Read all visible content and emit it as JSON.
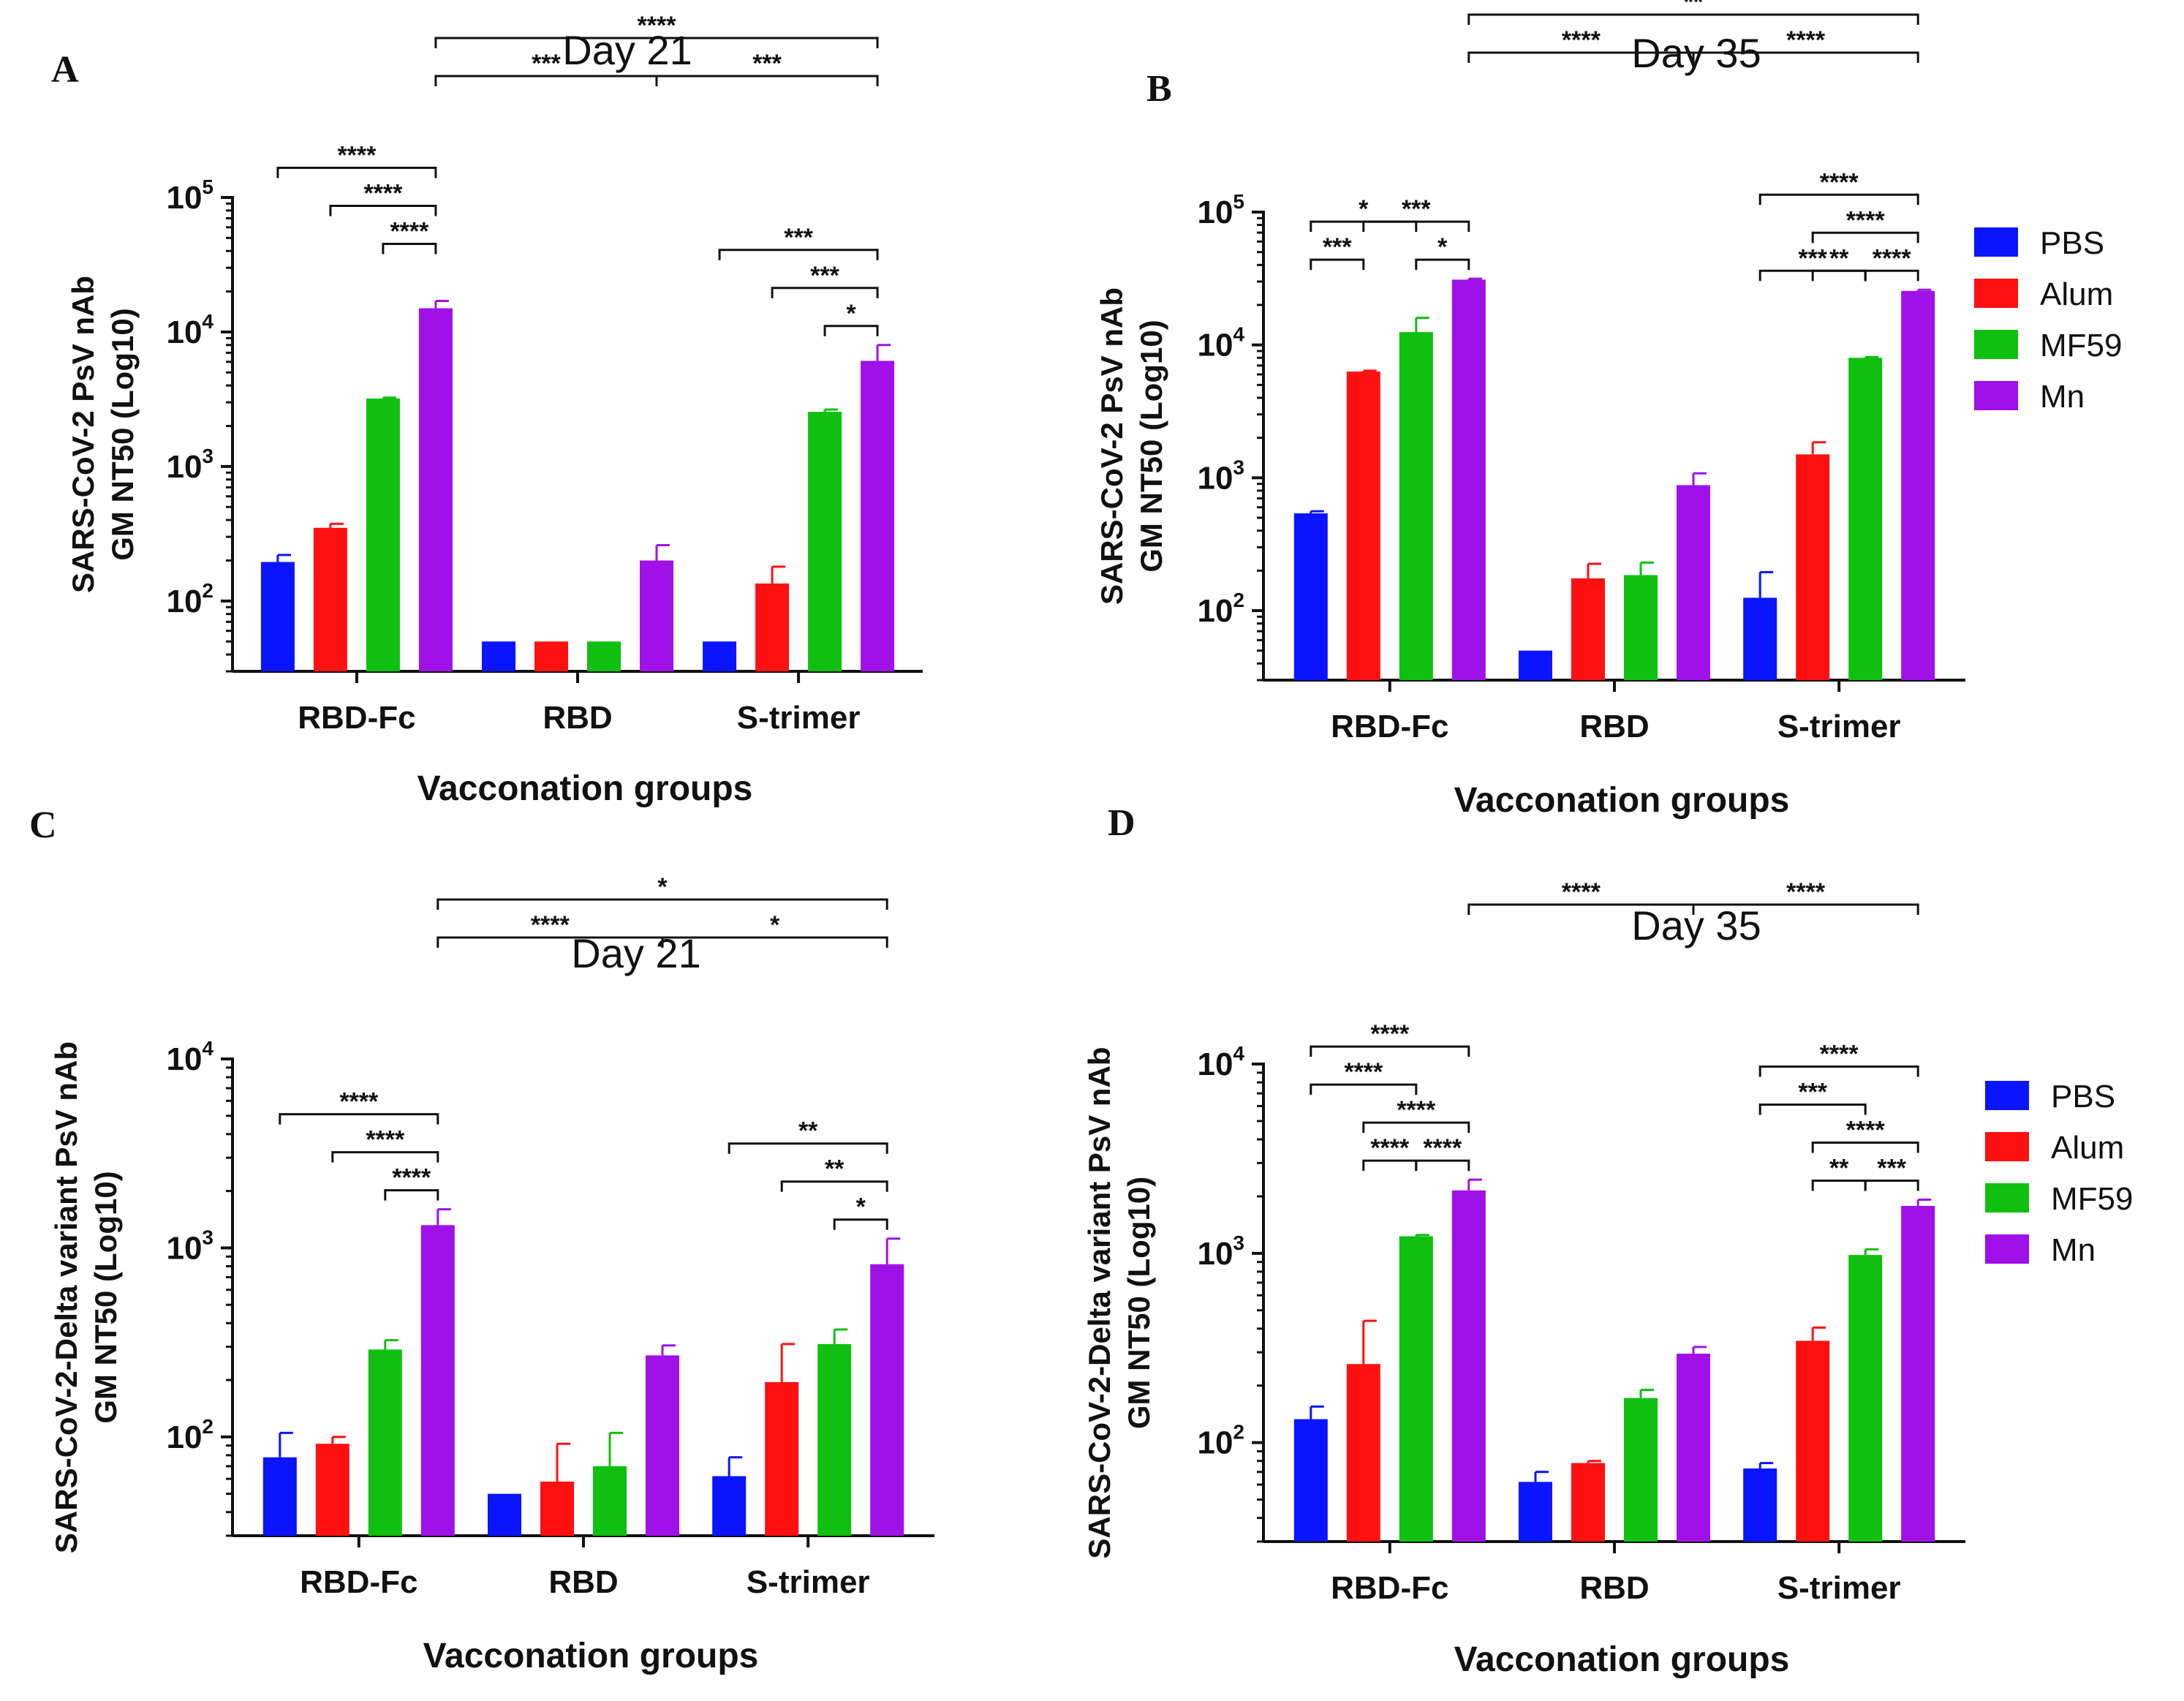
{
  "legend": {
    "items": [
      {
        "label": "PBS",
        "color": "#0a14ff"
      },
      {
        "label": "Alum",
        "color": "#ff1010"
      },
      {
        "label": "MF59",
        "color": "#10c010"
      },
      {
        "label": "Mn",
        "color": "#a010e8"
      }
    ]
  },
  "chart_data": [
    {
      "panel": "A",
      "type": "bar",
      "title": "Day 21",
      "ylabel_line1": "SARS-CoV-2 PsV nAb",
      "ylabel_line2": "GM NT50 (Log10)",
      "xlabel": "Vacconation groups",
      "yscale": "log",
      "ylim": [
        30,
        100000
      ],
      "yticks": [
        {
          "base": "10",
          "exp": "2"
        },
        {
          "base": "10",
          "exp": "3"
        },
        {
          "base": "10",
          "exp": "4"
        },
        {
          "base": "10",
          "exp": "5"
        }
      ],
      "categories": [
        "RBD-Fc",
        "RBD",
        "S-trimer"
      ],
      "series": [
        {
          "name": "PBS",
          "values": [
            195,
            50,
            50
          ],
          "errors": [
            220,
            null,
            null
          ]
        },
        {
          "name": "Alum",
          "values": [
            350,
            50,
            135
          ],
          "errors": [
            375,
            null,
            180
          ]
        },
        {
          "name": "MF59",
          "values": [
            3200,
            50,
            2550
          ],
          "errors": [
            3250,
            null,
            2650
          ]
        },
        {
          "name": "Mn",
          "values": [
            15000,
            200,
            6100
          ],
          "errors": [
            17000,
            260,
            8000
          ]
        }
      ],
      "brackets": [
        {
          "from": [
            0,
            0
          ],
          "to": [
            0,
            3
          ],
          "label": "****",
          "level": 3
        },
        {
          "from": [
            0,
            1
          ],
          "to": [
            0,
            3
          ],
          "label": "****",
          "level": 2
        },
        {
          "from": [
            0,
            2
          ],
          "to": [
            0,
            3
          ],
          "label": "****",
          "level": 1
        },
        {
          "from": [
            0,
            3
          ],
          "to": [
            1,
            3
          ],
          "label": "***",
          "level": 3
        },
        {
          "from": [
            1,
            3
          ],
          "to": [
            2,
            3
          ],
          "label": "***",
          "level": 3
        },
        {
          "from": [
            0,
            3
          ],
          "to": [
            2,
            3
          ],
          "label": "****",
          "level": 4
        },
        {
          "from": [
            2,
            0
          ],
          "to": [
            2,
            3
          ],
          "label": "***",
          "level": 2
        },
        {
          "from": [
            2,
            1
          ],
          "to": [
            2,
            3
          ],
          "label": "***",
          "level": 1
        },
        {
          "from": [
            2,
            2
          ],
          "to": [
            2,
            3
          ],
          "label": "*",
          "level": 0
        }
      ]
    },
    {
      "panel": "B",
      "type": "bar",
      "title": "Day 35",
      "ylabel_line1": "SARS-CoV-2 PsV nAb",
      "ylabel_line2": "GM NT50 (Log10)",
      "xlabel": "Vacconation groups",
      "yscale": "log",
      "ylim": [
        30,
        100000
      ],
      "yticks": [
        {
          "base": "10",
          "exp": "2"
        },
        {
          "base": "10",
          "exp": "3"
        },
        {
          "base": "10",
          "exp": "4"
        },
        {
          "base": "10",
          "exp": "5"
        }
      ],
      "categories": [
        "RBD-Fc",
        "RBD",
        "S-trimer"
      ],
      "series": [
        {
          "name": "PBS",
          "values": [
            540,
            50,
            125
          ],
          "errors": [
            560,
            null,
            195
          ]
        },
        {
          "name": "Alum",
          "values": [
            6300,
            175,
            1500
          ],
          "errors": [
            6400,
            225,
            1850
          ]
        },
        {
          "name": "MF59",
          "values": [
            12500,
            185,
            8000
          ],
          "errors": [
            16000,
            230,
            8100
          ]
        },
        {
          "name": "Mn",
          "values": [
            31000,
            880,
            25500
          ],
          "errors": [
            31500,
            1080,
            26000
          ]
        }
      ],
      "brackets": [
        {
          "from": [
            0,
            0
          ],
          "to": [
            0,
            1
          ],
          "label": "***",
          "level": 0
        },
        {
          "from": [
            0,
            0
          ],
          "to": [
            0,
            2
          ],
          "label": "*",
          "level": 1
        },
        {
          "from": [
            0,
            2
          ],
          "to": [
            0,
            3
          ],
          "label": "*",
          "level": 0
        },
        {
          "from": [
            0,
            1
          ],
          "to": [
            0,
            3
          ],
          "label": "***",
          "level": 1
        },
        {
          "from": [
            0,
            3
          ],
          "to": [
            1,
            3
          ],
          "label": "****",
          "level": 4
        },
        {
          "from": [
            1,
            3
          ],
          "to": [
            2,
            3
          ],
          "label": "****",
          "level": 4
        },
        {
          "from": [
            0,
            3
          ],
          "to": [
            2,
            3
          ],
          "label": "**",
          "level": 5
        },
        {
          "from": [
            2,
            0
          ],
          "to": [
            2,
            2
          ],
          "label": "***",
          "level": 0
        },
        {
          "from": [
            2,
            2
          ],
          "to": [
            2,
            3
          ],
          "label": "****",
          "level": 0
        },
        {
          "from": [
            2,
            1
          ],
          "to": [
            2,
            2
          ],
          "label": "**",
          "level": 0
        },
        {
          "from": [
            2,
            1
          ],
          "to": [
            2,
            3
          ],
          "label": "****",
          "level": 1
        },
        {
          "from": [
            2,
            0
          ],
          "to": [
            2,
            3
          ],
          "label": "****",
          "level": 2
        }
      ]
    },
    {
      "panel": "C",
      "type": "bar",
      "title": "Day 21",
      "ylabel_line1": "SARS-CoV-2-Delta variant PsV nAb",
      "ylabel_line2": "GM NT50 (Log10)",
      "xlabel": "Vacconation groups",
      "yscale": "log",
      "ylim": [
        30,
        10000
      ],
      "yticks": [
        {
          "base": "10",
          "exp": "2"
        },
        {
          "base": "10",
          "exp": "3"
        },
        {
          "base": "10",
          "exp": "4"
        }
      ],
      "categories": [
        "RBD-Fc",
        "RBD",
        "S-trimer"
      ],
      "series": [
        {
          "name": "PBS",
          "values": [
            78,
            50,
            62
          ],
          "errors": [
            105,
            null,
            78
          ]
        },
        {
          "name": "Alum",
          "values": [
            92,
            58,
            195
          ],
          "errors": [
            100,
            92,
            310
          ]
        },
        {
          "name": "MF59",
          "values": [
            290,
            70,
            310
          ],
          "errors": [
            325,
            105,
            370
          ]
        },
        {
          "name": "Mn",
          "values": [
            1320,
            270,
            820
          ],
          "errors": [
            1600,
            305,
            1120
          ]
        }
      ],
      "brackets": [
        {
          "from": [
            0,
            0
          ],
          "to": [
            0,
            3
          ],
          "label": "****",
          "level": 2
        },
        {
          "from": [
            0,
            1
          ],
          "to": [
            0,
            3
          ],
          "label": "****",
          "level": 1
        },
        {
          "from": [
            0,
            2
          ],
          "to": [
            0,
            3
          ],
          "label": "****",
          "level": 0
        },
        {
          "from": [
            0,
            3
          ],
          "to": [
            1,
            3
          ],
          "label": "****",
          "level": 3
        },
        {
          "from": [
            1,
            3
          ],
          "to": [
            2,
            3
          ],
          "label": "*",
          "level": 3
        },
        {
          "from": [
            0,
            3
          ],
          "to": [
            2,
            3
          ],
          "label": "*",
          "level": 4
        },
        {
          "from": [
            2,
            0
          ],
          "to": [
            2,
            3
          ],
          "label": "**",
          "level": 2
        },
        {
          "from": [
            2,
            1
          ],
          "to": [
            2,
            3
          ],
          "label": "**",
          "level": 1
        },
        {
          "from": [
            2,
            2
          ],
          "to": [
            2,
            3
          ],
          "label": "*",
          "level": 0
        }
      ]
    },
    {
      "panel": "D",
      "type": "bar",
      "title": "Day 35",
      "ylabel_line1": "SARS-CoV-2-Delta variant PsV nAb",
      "ylabel_line2": "GM NT50 (Log10)",
      "xlabel": "Vacconation groups",
      "yscale": "log",
      "ylim": [
        30,
        10000
      ],
      "yticks": [
        {
          "base": "10",
          "exp": "2"
        },
        {
          "base": "10",
          "exp": "3"
        },
        {
          "base": "10",
          "exp": "4"
        }
      ],
      "categories": [
        "RBD-Fc",
        "RBD",
        "S-trimer"
      ],
      "series": [
        {
          "name": "PBS",
          "values": [
            133,
            62,
            73
          ],
          "errors": [
            155,
            70,
            78
          ]
        },
        {
          "name": "Alum",
          "values": [
            260,
            78,
            345
          ],
          "errors": [
            440,
            80,
            405
          ]
        },
        {
          "name": "MF59",
          "values": [
            1230,
            172,
            980
          ],
          "errors": [
            1250,
            190,
            1050
          ]
        },
        {
          "name": "Mn",
          "values": [
            2150,
            295,
            1780
          ],
          "errors": [
            2450,
            320,
            1920
          ]
        }
      ],
      "brackets": [
        {
          "from": [
            0,
            1
          ],
          "to": [
            0,
            2
          ],
          "label": "****",
          "level": 0
        },
        {
          "from": [
            0,
            2
          ],
          "to": [
            0,
            3
          ],
          "label": "****",
          "level": 0
        },
        {
          "from": [
            0,
            1
          ],
          "to": [
            0,
            3
          ],
          "label": "****",
          "level": 1
        },
        {
          "from": [
            0,
            0
          ],
          "to": [
            0,
            2
          ],
          "label": "****",
          "level": 2
        },
        {
          "from": [
            0,
            0
          ],
          "to": [
            0,
            3
          ],
          "label": "****",
          "level": 3
        },
        {
          "from": [
            0,
            3
          ],
          "to": [
            1,
            3
          ],
          "label": "****",
          "level": 4
        },
        {
          "from": [
            1,
            3
          ],
          "to": [
            2,
            3
          ],
          "label": "****",
          "level": 4
        },
        {
          "from": [
            2,
            1
          ],
          "to": [
            2,
            2
          ],
          "label": "**",
          "level": 0
        },
        {
          "from": [
            2,
            2
          ],
          "to": [
            2,
            3
          ],
          "label": "***",
          "level": 0
        },
        {
          "from": [
            2,
            1
          ],
          "to": [
            2,
            3
          ],
          "label": "****",
          "level": 1
        },
        {
          "from": [
            2,
            0
          ],
          "to": [
            2,
            2
          ],
          "label": "***",
          "level": 2
        },
        {
          "from": [
            2,
            0
          ],
          "to": [
            2,
            3
          ],
          "label": "****",
          "level": 3
        }
      ]
    }
  ]
}
